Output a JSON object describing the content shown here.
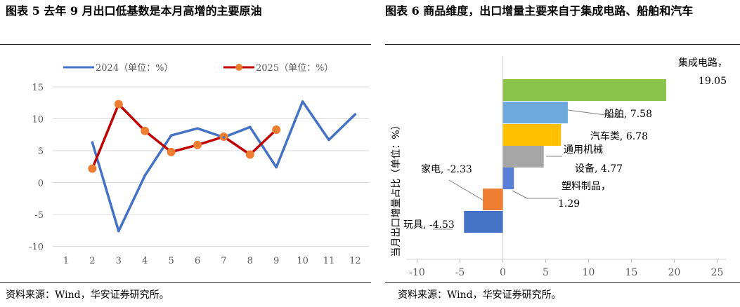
{
  "left": {
    "figure_title": "图表 5  去年 9 月出口低基数是本月高增的主要原油",
    "source": "资料来源：Wind，华安证券研究所。"
  },
  "right": {
    "figure_title": "图表 6  商品维度，出口增量主要来自于集成电路、船舶和汽车",
    "source": "资料来源：Wind，华安证券研究所。"
  },
  "colors": {
    "series_2024": "#4472C4",
    "series_2025_line": "#C00000",
    "series_2025_marker": "#ED7D31",
    "grid": "#d9d9d9",
    "axis_text": "#595959"
  },
  "chart_data": [
    {
      "type": "line",
      "x": [
        1,
        2,
        3,
        4,
        5,
        6,
        7,
        8,
        9,
        10,
        11,
        12
      ],
      "series": [
        {
          "name": "2024（单位：%）",
          "values": [
            null,
            6.3,
            -7.6,
            1.1,
            7.4,
            8.5,
            7.1,
            8.7,
            2.4,
            12.7,
            6.7,
            10.7
          ]
        },
        {
          "name": "2025（单位：%）",
          "values": [
            null,
            2.2,
            12.3,
            8.1,
            4.8,
            5.9,
            7.2,
            4.4,
            8.3,
            null,
            null,
            null
          ]
        }
      ],
      "xticks": [
        "1",
        "2",
        "3",
        "4",
        "5",
        "6",
        "7",
        "8",
        "9",
        "10",
        "11",
        "12"
      ],
      "yticks": [
        "15",
        "10",
        "5",
        "0",
        "-5",
        "-10"
      ],
      "ylim": [
        -10,
        15
      ],
      "legend": "top",
      "grid": true
    },
    {
      "type": "bar",
      "orientation": "horizontal",
      "ylabel": "当月出口增量占比（单位：%）",
      "categories": [
        "集成电路",
        "船舶",
        "汽车类",
        "通用机械设备",
        "塑料制品",
        "家电",
        "玩具"
      ],
      "labels": [
        "集成电路，19.05",
        "船舶, 7.58",
        "汽车类, 6.78",
        "通用机械设备, 4.77",
        "塑料制品，1.29",
        "家电, -2.33",
        "玩具, -4.53"
      ],
      "values": [
        19.05,
        7.58,
        6.78,
        4.77,
        1.29,
        -2.33,
        -4.53
      ],
      "bar_colors": [
        "#8BC34A",
        "#6FA8DC",
        "#FFC000",
        "#A6A6A6",
        "#5B7FD6",
        "#ED7D31",
        "#4472C4"
      ],
      "xticks": [
        "-10",
        "-5",
        "0",
        "5",
        "10",
        "15",
        "20",
        "25"
      ],
      "xlim": [
        -10,
        25
      ]
    }
  ]
}
